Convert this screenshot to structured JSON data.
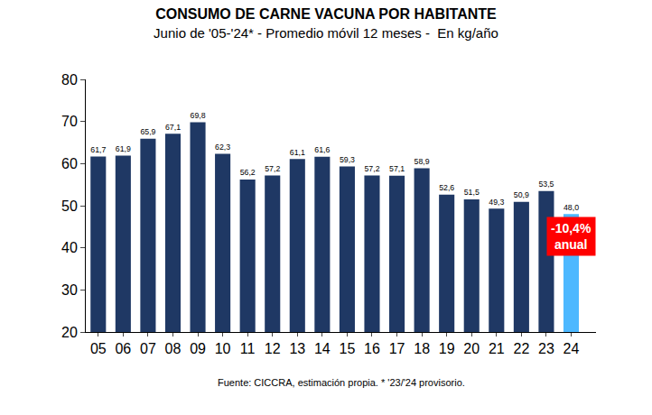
{
  "chart_data": {
    "type": "bar",
    "title": "CONSUMO DE CARNE VACUNA POR HABITANTE",
    "subtitle": "Junio de '05-'24* - Promedio móvil 12 meses -  En kg/año",
    "source": "Fuente: CICCRA, estimación propia. * '23/'24 provisorio.",
    "categories": [
      "05",
      "06",
      "07",
      "08",
      "09",
      "10",
      "11",
      "12",
      "13",
      "14",
      "15",
      "16",
      "17",
      "18",
      "19",
      "20",
      "21",
      "22",
      "23",
      "24"
    ],
    "values": [
      61.7,
      61.9,
      65.9,
      67.1,
      69.8,
      62.3,
      56.2,
      57.2,
      61.1,
      61.6,
      59.3,
      57.2,
      57.1,
      58.9,
      52.6,
      51.5,
      49.3,
      50.9,
      53.5,
      48.0
    ],
    "value_labels": [
      "61,7",
      "61,9",
      "65,9",
      "67,1",
      "69,8",
      "62,3",
      "56,2",
      "57,2",
      "61,1",
      "61,6",
      "59,3",
      "57,2",
      "57,1",
      "58,9",
      "52,6",
      "51,5",
      "49,3",
      "50,9",
      "53,5",
      "48,0"
    ],
    "colors": [
      "#1f3864",
      "#1f3864",
      "#1f3864",
      "#1f3864",
      "#1f3864",
      "#1f3864",
      "#1f3864",
      "#1f3864",
      "#1f3864",
      "#1f3864",
      "#1f3864",
      "#1f3864",
      "#1f3864",
      "#1f3864",
      "#1f3864",
      "#1f3864",
      "#1f3864",
      "#1f3864",
      "#1f3864",
      "#4db8ff"
    ],
    "data_labels": true,
    "grid": false,
    "ylim": [
      20,
      80
    ],
    "yticks": [
      20,
      30,
      40,
      50,
      60,
      70,
      80
    ],
    "annotations": [
      {
        "category": "24",
        "lines": [
          "-10,4%",
          "anual"
        ],
        "color": "#ff0000"
      }
    ]
  }
}
